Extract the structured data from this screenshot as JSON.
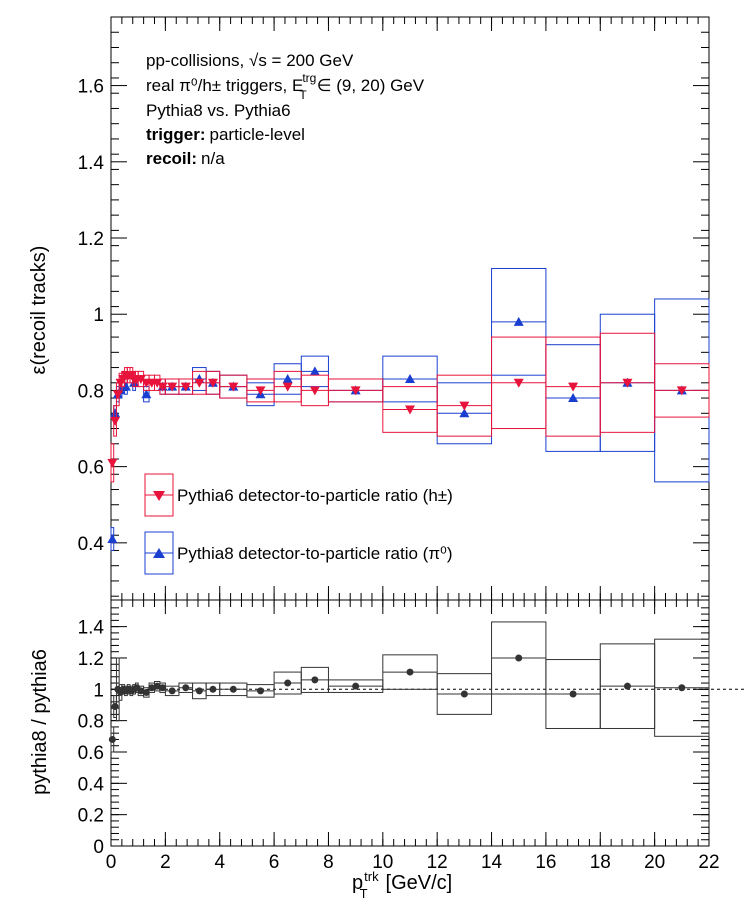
{
  "annotations": {
    "line1": "pp-collisions, √s = 200 GeV",
    "line2": "real π⁰/h± triggers, E",
    "line2_sup": "trg",
    "line2_sub": "T",
    "line2_end": "∈ (9, 20) GeV",
    "line3": "Pythia8 vs. Pythia6",
    "line4_bold": "trigger:",
    "line4_rest": "particle-level",
    "line5_bold": "recoil:",
    "line5_rest": "n/a"
  },
  "legend": {
    "pythia6": "Pythia6 detector-to-particle ratio (h±)",
    "pythia8": "Pythia8 detector-to-particle ratio (π⁰)"
  },
  "colors": {
    "pythia6": "#e8133a",
    "pythia8": "#1a3fd0",
    "ratio": "#333333"
  },
  "chart_data": [
    {
      "type": "scatter",
      "ylabel": "ε(recoil tracks)",
      "xlim": [
        0,
        22
      ],
      "ylim": [
        0.25,
        1.78
      ],
      "yticks": [
        0.4,
        0.6,
        0.8,
        1.0,
        1.2,
        1.4,
        1.6
      ],
      "ytick_labels": [
        "0.4",
        "0.6",
        "0.8",
        "1",
        "1.2",
        "1.4",
        "1.6"
      ],
      "series": [
        {
          "name": "Pythia6 detector-to-particle ratio (h±)",
          "marker": "triangle-down",
          "points": [
            {
              "x": 0.05,
              "y": 0.61,
              "xerr": 0.05,
              "yerr": 0.05
            },
            {
              "x": 0.15,
              "y": 0.72,
              "xerr": 0.05,
              "yerr": 0.04
            },
            {
              "x": 0.25,
              "y": 0.79,
              "xerr": 0.05,
              "yerr": 0.03
            },
            {
              "x": 0.35,
              "y": 0.82,
              "xerr": 0.05,
              "yerr": 0.025
            },
            {
              "x": 0.45,
              "y": 0.83,
              "xerr": 0.05,
              "yerr": 0.02
            },
            {
              "x": 0.55,
              "y": 0.84,
              "xerr": 0.05,
              "yerr": 0.02
            },
            {
              "x": 0.65,
              "y": 0.84,
              "xerr": 0.05,
              "yerr": 0.02
            },
            {
              "x": 0.75,
              "y": 0.84,
              "xerr": 0.05,
              "yerr": 0.02
            },
            {
              "x": 0.85,
              "y": 0.83,
              "xerr": 0.05,
              "yerr": 0.02
            },
            {
              "x": 0.95,
              "y": 0.83,
              "xerr": 0.05,
              "yerr": 0.02
            },
            {
              "x": 1.1,
              "y": 0.83,
              "xerr": 0.1,
              "yerr": 0.02
            },
            {
              "x": 1.3,
              "y": 0.82,
              "xerr": 0.1,
              "yerr": 0.02
            },
            {
              "x": 1.5,
              "y": 0.82,
              "xerr": 0.1,
              "yerr": 0.02
            },
            {
              "x": 1.7,
              "y": 0.82,
              "xerr": 0.1,
              "yerr": 0.02
            },
            {
              "x": 1.9,
              "y": 0.81,
              "xerr": 0.1,
              "yerr": 0.02
            },
            {
              "x": 2.25,
              "y": 0.81,
              "xerr": 0.25,
              "yerr": 0.02
            },
            {
              "x": 2.75,
              "y": 0.81,
              "xerr": 0.25,
              "yerr": 0.02
            },
            {
              "x": 3.25,
              "y": 0.82,
              "xerr": 0.25,
              "yerr": 0.03
            },
            {
              "x": 3.75,
              "y": 0.82,
              "xerr": 0.25,
              "yerr": 0.03
            },
            {
              "x": 4.5,
              "y": 0.81,
              "xerr": 0.5,
              "yerr": 0.03
            },
            {
              "x": 5.5,
              "y": 0.8,
              "xerr": 0.5,
              "yerr": 0.03
            },
            {
              "x": 6.5,
              "y": 0.81,
              "xerr": 0.5,
              "yerr": 0.04
            },
            {
              "x": 7.5,
              "y": 0.8,
              "xerr": 0.5,
              "yerr": 0.04
            },
            {
              "x": 9.0,
              "y": 0.8,
              "xerr": 1.0,
              "yerr": 0.03
            },
            {
              "x": 11.0,
              "y": 0.75,
              "xerr": 1.0,
              "yerr": 0.06
            },
            {
              "x": 13.0,
              "y": 0.76,
              "xerr": 1.0,
              "yerr": 0.08
            },
            {
              "x": 15.0,
              "y": 0.82,
              "xerr": 1.0,
              "yerr": 0.12
            },
            {
              "x": 17.0,
              "y": 0.81,
              "xerr": 1.0,
              "yerr": 0.13
            },
            {
              "x": 19.0,
              "y": 0.82,
              "xerr": 1.0,
              "yerr": 0.13
            },
            {
              "x": 21.0,
              "y": 0.8,
              "xerr": 1.0,
              "yerr": 0.07
            }
          ]
        },
        {
          "name": "Pythia8 detector-to-particle ratio (π⁰)",
          "marker": "triangle-up",
          "points": [
            {
              "x": 0.05,
              "y": 0.41,
              "xerr": 0.05,
              "yerr": 0.03
            },
            {
              "x": 0.15,
              "y": 0.74,
              "xerr": 0.05,
              "yerr": 0.02
            },
            {
              "x": 0.25,
              "y": 0.79,
              "xerr": 0.05,
              "yerr": 0.02
            },
            {
              "x": 0.35,
              "y": 0.8,
              "xerr": 0.05,
              "yerr": 0.02
            },
            {
              "x": 0.55,
              "y": 0.81,
              "xerr": 0.05,
              "yerr": 0.02
            },
            {
              "x": 0.85,
              "y": 0.82,
              "xerr": 0.05,
              "yerr": 0.02
            },
            {
              "x": 1.3,
              "y": 0.79,
              "xerr": 0.1,
              "yerr": 0.02
            },
            {
              "x": 1.9,
              "y": 0.81,
              "xerr": 0.1,
              "yerr": 0.02
            },
            {
              "x": 2.25,
              "y": 0.81,
              "xerr": 0.25,
              "yerr": 0.02
            },
            {
              "x": 2.75,
              "y": 0.81,
              "xerr": 0.25,
              "yerr": 0.02
            },
            {
              "x": 3.25,
              "y": 0.83,
              "xerr": 0.25,
              "yerr": 0.03
            },
            {
              "x": 3.75,
              "y": 0.82,
              "xerr": 0.25,
              "yerr": 0.03
            },
            {
              "x": 4.5,
              "y": 0.81,
              "xerr": 0.5,
              "yerr": 0.03
            },
            {
              "x": 5.5,
              "y": 0.79,
              "xerr": 0.5,
              "yerr": 0.03
            },
            {
              "x": 6.5,
              "y": 0.83,
              "xerr": 0.5,
              "yerr": 0.04
            },
            {
              "x": 7.5,
              "y": 0.85,
              "xerr": 0.5,
              "yerr": 0.04
            },
            {
              "x": 9.0,
              "y": 0.8,
              "xerr": 1.0,
              "yerr": 0.03
            },
            {
              "x": 11.0,
              "y": 0.83,
              "xerr": 1.0,
              "yerr": 0.06
            },
            {
              "x": 13.0,
              "y": 0.74,
              "xerr": 1.0,
              "yerr": 0.08
            },
            {
              "x": 15.0,
              "y": 0.98,
              "xerr": 1.0,
              "yerr": 0.14
            },
            {
              "x": 17.0,
              "y": 0.78,
              "xerr": 1.0,
              "yerr": 0.14
            },
            {
              "x": 19.0,
              "y": 0.82,
              "xerr": 1.0,
              "yerr": 0.18
            },
            {
              "x": 21.0,
              "y": 0.8,
              "xerr": 1.0,
              "yerr": 0.24
            }
          ]
        }
      ]
    },
    {
      "type": "scatter",
      "xlabel": "p",
      "xlabel_sup": "trk",
      "xlabel_sub": "T",
      "xlabel_unit": "[GeV/c]",
      "ylabel": "pythia8 / pythia6",
      "xlim": [
        0,
        22
      ],
      "ylim": [
        0,
        1.57
      ],
      "xticks": [
        0,
        2,
        4,
        6,
        8,
        10,
        12,
        14,
        16,
        18,
        20,
        22
      ],
      "xtick_labels": [
        "0",
        "2",
        "4",
        "6",
        "8",
        "10",
        "12",
        "14",
        "16",
        "18",
        "20",
        "22"
      ],
      "yticks": [
        0,
        0.2,
        0.4,
        0.6,
        0.8,
        1.0,
        1.2,
        1.4
      ],
      "ytick_labels": [
        "0",
        "0.2",
        "0.4",
        "0.6",
        "0.8",
        "1",
        "1.2",
        "1.4"
      ],
      "reference_line": 1.0,
      "series": [
        {
          "name": "",
          "marker": "circle",
          "points": [
            {
              "x": 0.05,
              "y": 0.68,
              "xerr": 0.05,
              "yerr": 0.08
            },
            {
              "x": 0.15,
              "y": 0.89,
              "xerr": 0.05,
              "yerr": 0.07
            },
            {
              "x": 0.25,
              "y": 1.0,
              "xerr": 0.05,
              "yerr": 0.2
            },
            {
              "x": 0.35,
              "y": 0.98,
              "xerr": 0.05,
              "yerr": 0.05
            },
            {
              "x": 0.45,
              "y": 1.0,
              "xerr": 0.05,
              "yerr": 0.03
            },
            {
              "x": 0.55,
              "y": 0.99,
              "xerr": 0.05,
              "yerr": 0.03
            },
            {
              "x": 0.65,
              "y": 1.0,
              "xerr": 0.05,
              "yerr": 0.03
            },
            {
              "x": 0.75,
              "y": 0.99,
              "xerr": 0.05,
              "yerr": 0.03
            },
            {
              "x": 0.85,
              "y": 1.0,
              "xerr": 0.05,
              "yerr": 0.03
            },
            {
              "x": 0.95,
              "y": 1.01,
              "xerr": 0.05,
              "yerr": 0.03
            },
            {
              "x": 1.1,
              "y": 0.99,
              "xerr": 0.1,
              "yerr": 0.03
            },
            {
              "x": 1.3,
              "y": 0.98,
              "xerr": 0.1,
              "yerr": 0.03
            },
            {
              "x": 1.5,
              "y": 1.01,
              "xerr": 0.1,
              "yerr": 0.03
            },
            {
              "x": 1.7,
              "y": 1.02,
              "xerr": 0.1,
              "yerr": 0.03
            },
            {
              "x": 1.9,
              "y": 1.01,
              "xerr": 0.1,
              "yerr": 0.03
            },
            {
              "x": 2.25,
              "y": 0.99,
              "xerr": 0.25,
              "yerr": 0.03
            },
            {
              "x": 2.75,
              "y": 1.01,
              "xerr": 0.25,
              "yerr": 0.03
            },
            {
              "x": 3.25,
              "y": 0.99,
              "xerr": 0.25,
              "yerr": 0.05
            },
            {
              "x": 3.75,
              "y": 1.0,
              "xerr": 0.25,
              "yerr": 0.04
            },
            {
              "x": 4.5,
              "y": 1.0,
              "xerr": 0.5,
              "yerr": 0.04
            },
            {
              "x": 5.5,
              "y": 0.99,
              "xerr": 0.5,
              "yerr": 0.04
            },
            {
              "x": 6.5,
              "y": 1.04,
              "xerr": 0.5,
              "yerr": 0.07
            },
            {
              "x": 7.5,
              "y": 1.06,
              "xerr": 0.5,
              "yerr": 0.08
            },
            {
              "x": 9.0,
              "y": 1.02,
              "xerr": 1.0,
              "yerr": 0.04
            },
            {
              "x": 11.0,
              "y": 1.11,
              "xerr": 1.0,
              "yerr": 0.11
            },
            {
              "x": 13.0,
              "y": 0.97,
              "xerr": 1.0,
              "yerr": 0.13
            },
            {
              "x": 15.0,
              "y": 1.2,
              "xerr": 1.0,
              "yerr": 0.23
            },
            {
              "x": 17.0,
              "y": 0.97,
              "xerr": 1.0,
              "yerr": 0.22
            },
            {
              "x": 19.0,
              "y": 1.02,
              "xerr": 1.0,
              "yerr": 0.27
            },
            {
              "x": 21.0,
              "y": 1.01,
              "xerr": 1.0,
              "yerr": 0.31
            }
          ]
        }
      ]
    }
  ]
}
